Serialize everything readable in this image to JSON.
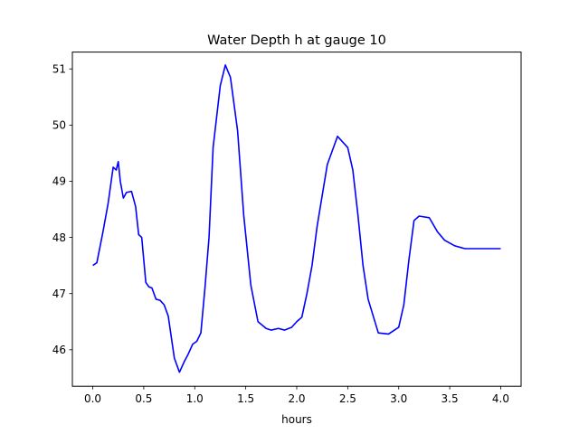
{
  "chart_data": {
    "type": "line",
    "title": "Water Depth h at gauge 10",
    "xlabel": "hours",
    "ylabel": "",
    "xlim": [
      -0.2,
      4.2
    ],
    "ylim": [
      45.35,
      51.3
    ],
    "xticks": [
      0.0,
      0.5,
      1.0,
      1.5,
      2.0,
      2.5,
      3.0,
      3.5,
      4.0
    ],
    "xtick_labels": [
      "0.0",
      "0.5",
      "1.0",
      "1.5",
      "2.0",
      "2.5",
      "3.0",
      "3.5",
      "4.0"
    ],
    "yticks": [
      46,
      47,
      48,
      49,
      50,
      51
    ],
    "ytick_labels": [
      "46",
      "47",
      "48",
      "49",
      "50",
      "51"
    ],
    "grid": false,
    "series": [
      {
        "color": "#0000ff",
        "x": [
          0.0,
          0.04,
          0.1,
          0.15,
          0.2,
          0.23,
          0.25,
          0.27,
          0.3,
          0.33,
          0.38,
          0.42,
          0.45,
          0.48,
          0.5,
          0.52,
          0.55,
          0.58,
          0.62,
          0.66,
          0.7,
          0.74,
          0.8,
          0.85,
          0.9,
          0.93,
          0.98,
          1.02,
          1.06,
          1.1,
          1.14,
          1.18,
          1.25,
          1.3,
          1.35,
          1.42,
          1.48,
          1.55,
          1.62,
          1.7,
          1.75,
          1.82,
          1.88,
          1.95,
          2.0,
          2.05,
          2.1,
          2.15,
          2.2,
          2.3,
          2.4,
          2.5,
          2.55,
          2.6,
          2.65,
          2.7,
          2.8,
          2.9,
          3.0,
          3.05,
          3.1,
          3.15,
          3.2,
          3.3,
          3.38,
          3.45,
          3.55,
          3.65,
          3.75,
          3.85,
          3.95,
          4.0
        ],
        "y": [
          47.5,
          47.55,
          48.1,
          48.6,
          49.25,
          49.2,
          49.35,
          49.0,
          48.7,
          48.8,
          48.82,
          48.55,
          48.05,
          48.0,
          47.6,
          47.2,
          47.12,
          47.1,
          46.9,
          46.88,
          46.8,
          46.6,
          45.85,
          45.6,
          45.8,
          45.9,
          46.1,
          46.15,
          46.3,
          47.1,
          48.0,
          49.6,
          50.7,
          51.07,
          50.85,
          49.9,
          48.4,
          47.15,
          46.5,
          46.38,
          46.35,
          46.38,
          46.35,
          46.4,
          46.5,
          46.58,
          47.0,
          47.5,
          48.2,
          49.3,
          49.8,
          49.6,
          49.2,
          48.4,
          47.5,
          46.9,
          46.3,
          46.28,
          46.4,
          46.8,
          47.6,
          48.3,
          48.38,
          48.35,
          48.1,
          47.95,
          47.85,
          47.8,
          47.8,
          47.8,
          47.8,
          47.8
        ]
      }
    ]
  }
}
